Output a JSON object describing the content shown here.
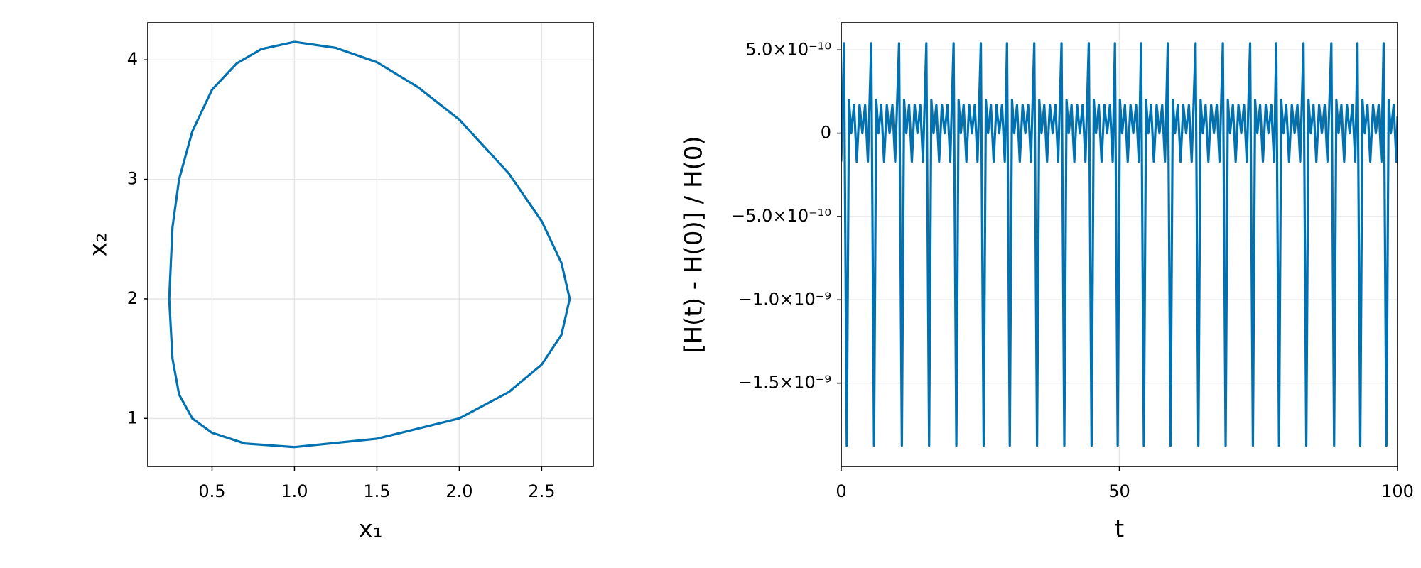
{
  "chart_data": [
    {
      "type": "line",
      "xlabel": "x₁",
      "ylabel": "x₂",
      "color": "#0072b2",
      "grid": true,
      "xlim": [
        0.11,
        2.813
      ],
      "ylim": [
        0.598,
        4.31
      ],
      "xticks": [
        0.5,
        {
          "value": 1,
          "label": "1.0"
        },
        1.5,
        {
          "value": 2,
          "label": "2.0"
        },
        2.5
      ],
      "yticks": [
        1,
        2,
        3,
        4
      ],
      "x": [
        1.0,
        1.25,
        1.5,
        1.75,
        2.0,
        2.3,
        2.5,
        2.62,
        2.67,
        2.62,
        2.5,
        2.3,
        2.0,
        1.5,
        1.0,
        0.7,
        0.5,
        0.38,
        0.3,
        0.26,
        0.24,
        0.26,
        0.3,
        0.38,
        0.5,
        0.65,
        0.8,
        1.0
      ],
      "values": [
        4.15,
        4.1,
        3.98,
        3.77,
        3.5,
        3.05,
        2.65,
        2.3,
        2.0,
        1.7,
        1.45,
        1.22,
        1.0,
        0.83,
        0.76,
        0.79,
        0.88,
        1.0,
        1.2,
        1.5,
        2.0,
        2.6,
        3.0,
        3.4,
        3.75,
        3.97,
        4.09,
        4.15
      ]
    },
    {
      "type": "line",
      "xlabel": "t",
      "ylabel": "[H(t) - H(0)] / H(0)",
      "color": "#0072b2",
      "grid": true,
      "xlim": [
        0,
        100
      ],
      "ylim": [
        -2e-09,
        6.63e-10
      ],
      "xticks": [
        0,
        50,
        100
      ],
      "yticks": [
        {
          "value": 5e-10,
          "label": "5.0×10⁻¹⁰"
        },
        0,
        {
          "value": -5e-10,
          "label": "−5.0×10⁻¹⁰"
        },
        {
          "value": -1e-09,
          "label": "−1.0×10⁻⁹"
        },
        {
          "value": -1.5e-09,
          "label": "−1.5×10⁻⁹"
        }
      ],
      "x": [
        0,
        0.5,
        1.0,
        1.4,
        1.8,
        2.3,
        2.8,
        3.3,
        3.8,
        4.3,
        4.8,
        5.4,
        5.9,
        6.3,
        6.7,
        7.2,
        7.7,
        8.2,
        8.7,
        9.2,
        9.7,
        10.4,
        10.9,
        11.3,
        11.7,
        12.2,
        12.7,
        13.2,
        13.7,
        14.2,
        14.7,
        15.3,
        15.8,
        16.2,
        16.6,
        17.1,
        17.6,
        18.1,
        18.6,
        19.1,
        19.6,
        20.2,
        20.7,
        21.1,
        21.5,
        22.0,
        22.5,
        23.0,
        23.5,
        24.0,
        24.5,
        25.1,
        25.6,
        26.0,
        26.4,
        26.9,
        27.4,
        27.9,
        28.4,
        28.9,
        29.4,
        29.8,
        30.3,
        30.7,
        31.1,
        31.6,
        32.1,
        32.6,
        33.1,
        33.6,
        34.1,
        34.7,
        35.2,
        35.6,
        36.0,
        36.5,
        37.0,
        37.5,
        38.0,
        38.5,
        39.0,
        39.6,
        40.1,
        40.5,
        40.9,
        41.4,
        41.9,
        42.4,
        42.9,
        43.4,
        43.9,
        44.5,
        45.0,
        45.4,
        45.8,
        46.3,
        46.8,
        47.3,
        47.8,
        48.3,
        48.8,
        49.2,
        49.7,
        50.1,
        50.5,
        51.0,
        51.5,
        52.0,
        52.5,
        53.0,
        53.5,
        53.9,
        54.4,
        54.8,
        55.2,
        55.7,
        56.2,
        56.7,
        57.2,
        57.7,
        58.2,
        58.7,
        59.2,
        59.6,
        60.0,
        60.5,
        61.0,
        61.5,
        62.0,
        62.5,
        63.0,
        63.7,
        64.2,
        64.6,
        65.0,
        65.5,
        66.0,
        66.5,
        67.0,
        67.5,
        68.0,
        68.6,
        69.1,
        69.5,
        69.9,
        70.4,
        70.9,
        71.4,
        71.9,
        72.4,
        72.9,
        73.5,
        74.0,
        74.4,
        74.8,
        75.3,
        75.8,
        76.3,
        76.8,
        77.3,
        77.8,
        78.2,
        78.7,
        79.1,
        79.5,
        80.0,
        80.5,
        81.0,
        81.5,
        82.0,
        82.5,
        83.1,
        83.6,
        84.0,
        84.4,
        84.9,
        85.4,
        85.9,
        86.4,
        86.9,
        87.4,
        88.1,
        88.6,
        89.0,
        89.4,
        89.9,
        90.4,
        90.9,
        91.4,
        91.9,
        92.4,
        92.8,
        93.3,
        93.7,
        94.1,
        94.6,
        95.1,
        95.6,
        96.1,
        96.6,
        97.1,
        97.5,
        98.0,
        98.4,
        98.8,
        99.3,
        99.8,
        100
      ],
      "values": [
        -1.7e-10,
        5.4e-10,
        -1.875e-09,
        2e-10,
        0,
        1.7e-10,
        -1.7e-10,
        1.7e-10,
        0,
        1.7e-10,
        -1.7e-10,
        5.4e-10,
        -1.875e-09,
        2e-10,
        0,
        1.7e-10,
        -1.7e-10,
        1.7e-10,
        0,
        1.7e-10,
        -1.7e-10,
        5.4e-10,
        -1.875e-09,
        2e-10,
        0,
        1.7e-10,
        -1.7e-10,
        1.7e-10,
        0,
        1.7e-10,
        -1.7e-10,
        5.4e-10,
        -1.875e-09,
        2e-10,
        0,
        1.7e-10,
        -1.7e-10,
        1.7e-10,
        0,
        1.7e-10,
        -1.7e-10,
        5.4e-10,
        -1.875e-09,
        2e-10,
        0,
        1.7e-10,
        -1.7e-10,
        1.7e-10,
        0,
        1.7e-10,
        -1.7e-10,
        5.4e-10,
        -1.875e-09,
        2e-10,
        0,
        1.7e-10,
        -1.7e-10,
        1.7e-10,
        0,
        1.7e-10,
        -1.7e-10,
        5.4e-10,
        -1.875e-09,
        2e-10,
        0,
        1.7e-10,
        -1.7e-10,
        1.7e-10,
        0,
        1.7e-10,
        -1.7e-10,
        5.4e-10,
        -1.875e-09,
        2e-10,
        0,
        1.7e-10,
        -1.7e-10,
        1.7e-10,
        0,
        1.7e-10,
        -1.7e-10,
        5.4e-10,
        -1.875e-09,
        2e-10,
        0,
        1.7e-10,
        -1.7e-10,
        1.7e-10,
        0,
        1.7e-10,
        -1.7e-10,
        5.4e-10,
        -1.875e-09,
        2e-10,
        0,
        1.7e-10,
        -1.7e-10,
        1.7e-10,
        0,
        1.7e-10,
        -1.7e-10,
        5.4e-10,
        -1.875e-09,
        2e-10,
        0,
        1.7e-10,
        -1.7e-10,
        1.7e-10,
        0,
        1.7e-10,
        -1.7e-10,
        5.4e-10,
        -1.875e-09,
        2e-10,
        0,
        1.7e-10,
        -1.7e-10,
        1.7e-10,
        0,
        1.7e-10,
        -1.7e-10,
        5.4e-10,
        -1.875e-09,
        2e-10,
        0,
        1.7e-10,
        -1.7e-10,
        1.7e-10,
        0,
        1.7e-10,
        -1.7e-10,
        5.4e-10,
        -1.875e-09,
        2e-10,
        0,
        1.7e-10,
        -1.7e-10,
        1.7e-10,
        0,
        1.7e-10,
        -1.7e-10,
        5.4e-10,
        -1.875e-09,
        2e-10,
        0,
        1.7e-10,
        -1.7e-10,
        1.7e-10,
        0,
        1.7e-10,
        -1.7e-10,
        5.4e-10,
        -1.875e-09,
        2e-10,
        0,
        1.7e-10,
        -1.7e-10,
        1.7e-10,
        0,
        1.7e-10,
        -1.7e-10,
        5.4e-10,
        -1.875e-09,
        2e-10,
        0,
        1.7e-10,
        -1.7e-10,
        1.7e-10,
        0,
        1.7e-10,
        -1.7e-10,
        5.4e-10,
        -1.875e-09,
        2e-10,
        0,
        1.7e-10,
        -1.7e-10,
        1.7e-10,
        0,
        1.7e-10,
        -1.7e-10,
        5.4e-10,
        -1.875e-09,
        2e-10,
        0,
        1.7e-10,
        -1.7e-10,
        1.7e-10,
        0,
        1.7e-10,
        -1.7e-10,
        5.4e-10,
        -1.875e-09,
        2e-10,
        0,
        1.7e-10,
        -1.7e-10,
        1.7e-10,
        0,
        1.7e-10,
        -1.7e-10,
        5.4e-10,
        -1.875e-09,
        2e-10,
        0,
        1.7e-10,
        -1.7e-10,
        1e-10
      ]
    }
  ]
}
